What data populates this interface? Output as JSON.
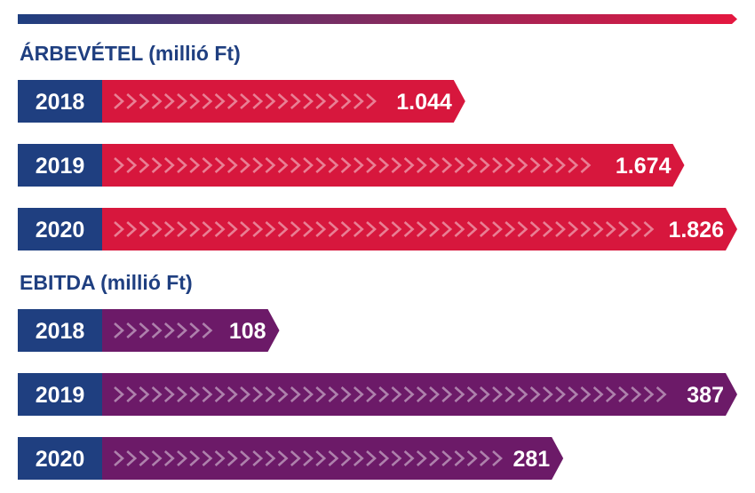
{
  "colors": {
    "year_box": "#1f3f80",
    "revenue_bar": "#d7173d",
    "ebitda_bar": "#6c1a68",
    "title_text": "#1f3f80",
    "gradient_start": "#1f3f80",
    "gradient_end": "#e5173f"
  },
  "chart_data": [
    {
      "type": "bar",
      "orientation": "horizontal",
      "title": "ÁRBEVÉTEL (millió Ft)",
      "categories": [
        "2018",
        "2019",
        "2020"
      ],
      "values": [
        1044,
        1674,
        1826
      ],
      "value_labels": [
        "1.044",
        "1.674",
        "1.826"
      ],
      "bar_color": "#d7173d"
    },
    {
      "type": "bar",
      "orientation": "horizontal",
      "title": "EBITDA (millió Ft)",
      "categories": [
        "2018",
        "2019",
        "2020"
      ],
      "values": [
        108,
        387,
        281
      ],
      "value_labels": [
        "108",
        "387",
        "281"
      ],
      "bar_color": "#6c1a68"
    }
  ]
}
